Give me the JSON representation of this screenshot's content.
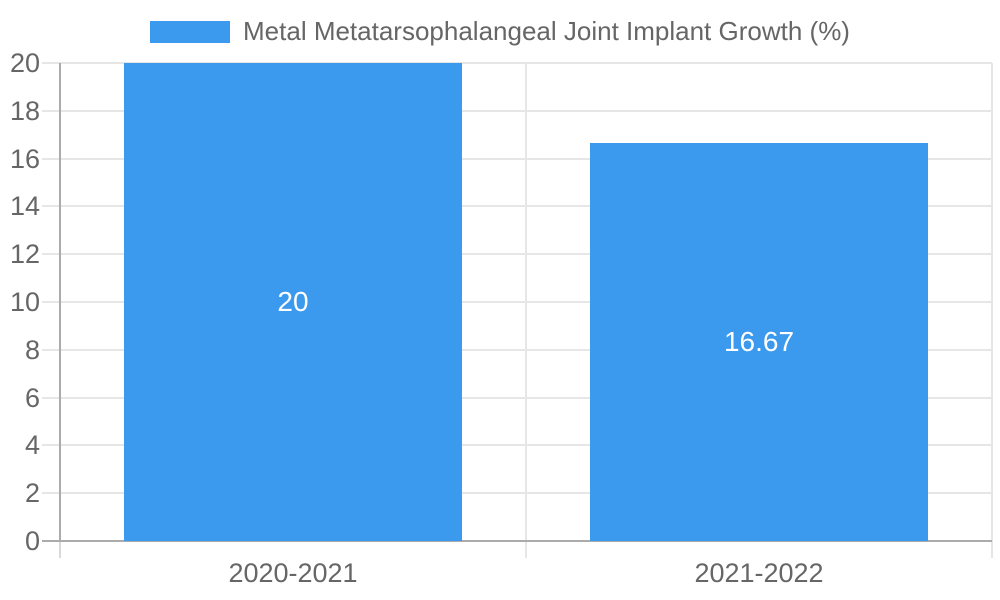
{
  "legend": {
    "label": "Metal Metatarsophalangeal Joint Implant Growth (%)"
  },
  "colors": {
    "bar": "#3B99EE",
    "grid": "#E6E6E6",
    "axis": "#ABABAB",
    "outer_tick": "#D9D9D9",
    "text": "#666666",
    "value_label": "#FFFFFF",
    "background": "#FFFFFF"
  },
  "chart_data": {
    "type": "bar",
    "title": "Metal Metatarsophalangeal Joint Implant Growth (%)",
    "categories": [
      "2020-2021",
      "2021-2022"
    ],
    "values": [
      20,
      16.67
    ],
    "value_labels": [
      "20",
      "16.67"
    ],
    "xlabel": "",
    "ylabel": "",
    "ylim": [
      0,
      20
    ],
    "ytick_step": 2,
    "ytick_labels": [
      "0",
      "2",
      "4",
      "6",
      "8",
      "10",
      "12",
      "14",
      "16",
      "18",
      "20"
    ],
    "grid": true,
    "legend_position": "top",
    "value_label_position": "center"
  }
}
